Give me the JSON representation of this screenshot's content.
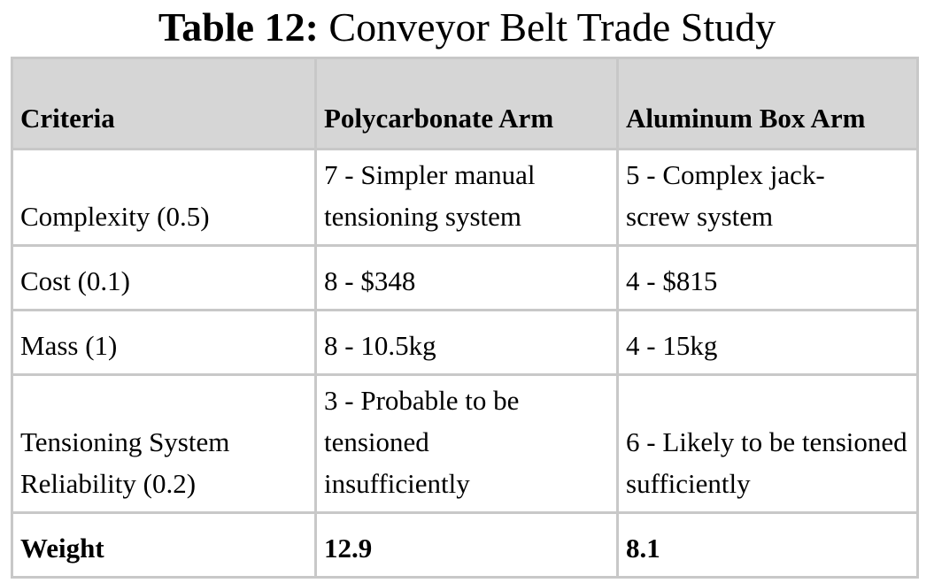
{
  "caption": {
    "label": "Table 12:",
    "text": "Conveyor Belt Trade Study"
  },
  "table": {
    "headers": [
      "Criteria",
      "Polycarbonate Arm",
      "Aluminum Box Arm"
    ],
    "rows": [
      {
        "criteria": "Complexity (0.5)",
        "polycarbonate": "7 - Simpler manual tensioning system",
        "aluminum": "5 - Complex jack-screw system"
      },
      {
        "criteria": "Cost (0.1)",
        "polycarbonate": "8 - $348",
        "aluminum": "4 - $815"
      },
      {
        "criteria": "Mass (1)",
        "polycarbonate": "8 - 10.5kg",
        "aluminum": "4 - 15kg"
      },
      {
        "criteria": "Tensioning System Reliability (0.2)",
        "polycarbonate": "3 - Probable to be tensioned insufficiently",
        "aluminum": "6 - Likely to be tensioned sufficiently"
      }
    ],
    "totals": {
      "label": "Weight",
      "polycarbonate": "12.9",
      "aluminum": "8.1"
    }
  }
}
